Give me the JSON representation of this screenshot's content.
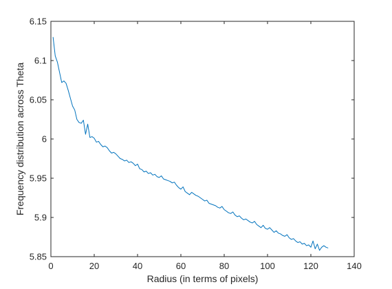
{
  "chart_data": {
    "type": "line",
    "title": "",
    "xlabel": "Radius (in terms of pixels)",
    "ylabel": "Frequency distribution across Theta",
    "xlim": [
      0,
      140
    ],
    "ylim": [
      5.85,
      6.15
    ],
    "xticks": [
      0,
      20,
      40,
      60,
      80,
      100,
      120,
      140
    ],
    "yticks": [
      5.85,
      5.9,
      5.95,
      6.0,
      6.05,
      6.1,
      6.15
    ],
    "xtick_labels": [
      "0",
      "20",
      "40",
      "60",
      "80",
      "100",
      "120",
      "140"
    ],
    "ytick_labels": [
      "5.85",
      "5.9",
      "5.95",
      "6",
      "6.05",
      "6.1",
      "6.15"
    ],
    "grid": false,
    "series": [
      {
        "color": "#0072BD",
        "x": [
          1,
          2,
          3,
          4,
          5,
          6,
          7,
          8,
          9,
          10,
          11,
          12,
          13,
          14,
          15,
          16,
          17,
          18,
          19,
          20,
          21,
          22,
          23,
          24,
          25,
          26,
          27,
          28,
          29,
          30,
          31,
          32,
          33,
          34,
          35,
          36,
          37,
          38,
          39,
          40,
          41,
          42,
          43,
          44,
          45,
          46,
          47,
          48,
          49,
          50,
          51,
          52,
          53,
          54,
          55,
          56,
          57,
          58,
          59,
          60,
          61,
          62,
          63,
          64,
          65,
          66,
          67,
          68,
          69,
          70,
          71,
          72,
          73,
          74,
          75,
          76,
          77,
          78,
          79,
          80,
          81,
          82,
          83,
          84,
          85,
          86,
          87,
          88,
          89,
          90,
          91,
          92,
          93,
          94,
          95,
          96,
          97,
          98,
          99,
          100,
          101,
          102,
          103,
          104,
          105,
          106,
          107,
          108,
          109,
          110,
          111,
          112,
          113,
          114,
          115,
          116,
          117,
          118,
          119,
          120,
          121,
          122,
          123,
          124,
          125,
          126,
          127,
          128
        ],
        "y": [
          6.13,
          6.106,
          6.098,
          6.085,
          6.072,
          6.074,
          6.071,
          6.062,
          6.052,
          6.042,
          6.037,
          6.025,
          6.021,
          6.02,
          6.024,
          6.006,
          6.019,
          6.002,
          6.003,
          6.001,
          5.996,
          5.997,
          5.993,
          5.99,
          5.991,
          5.989,
          5.985,
          5.982,
          5.983,
          5.981,
          5.978,
          5.975,
          5.974,
          5.972,
          5.973,
          5.97,
          5.971,
          5.969,
          5.966,
          5.968,
          5.962,
          5.961,
          5.958,
          5.959,
          5.956,
          5.957,
          5.954,
          5.955,
          5.952,
          5.951,
          5.953,
          5.949,
          5.948,
          5.947,
          5.946,
          5.944,
          5.945,
          5.941,
          5.938,
          5.936,
          5.939,
          5.933,
          5.931,
          5.929,
          5.932,
          5.93,
          5.928,
          5.927,
          5.925,
          5.923,
          5.921,
          5.922,
          5.918,
          5.917,
          5.916,
          5.915,
          5.913,
          5.912,
          5.914,
          5.91,
          5.908,
          5.906,
          5.905,
          5.907,
          5.903,
          5.901,
          5.902,
          5.899,
          5.897,
          5.898,
          5.896,
          5.894,
          5.893,
          5.895,
          5.891,
          5.889,
          5.887,
          5.89,
          5.886,
          5.885,
          5.887,
          5.884,
          5.881,
          5.883,
          5.88,
          5.879,
          5.877,
          5.876,
          5.878,
          5.874,
          5.872,
          5.873,
          5.87,
          5.868,
          5.869,
          5.866,
          5.867,
          5.864,
          5.865,
          5.862,
          5.87,
          5.86,
          5.866,
          5.858,
          5.862,
          5.864,
          5.862,
          5.861
        ]
      }
    ]
  }
}
